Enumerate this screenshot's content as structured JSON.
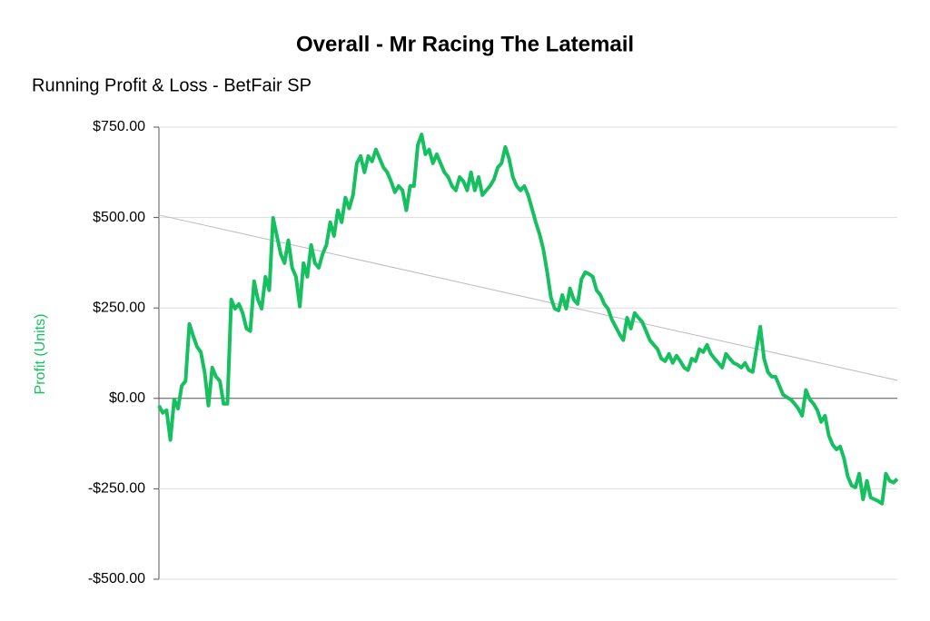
{
  "chart_data": {
    "type": "line",
    "title": "Overall - Mr Racing The Latemail",
    "subtitle": "Running Profit & Loss - BetFair SP",
    "y_label": "Profit (Units)",
    "ylim": [
      -500,
      750
    ],
    "yticks": [
      {
        "value": -500,
        "label": "-$500.00"
      },
      {
        "value": -250,
        "label": "-$250.00"
      },
      {
        "value": 0,
        "label": "$0.00"
      },
      {
        "value": 250,
        "label": "$250.00"
      },
      {
        "value": 500,
        "label": "$500.00"
      },
      {
        "value": 750,
        "label": "$750.00"
      }
    ],
    "grid": true,
    "color": "#16c060",
    "trendline": {
      "values": [
        507,
        50
      ],
      "color": "#bbbbbb"
    },
    "values": [
      -20,
      -40,
      -33,
      -115,
      -3,
      -28,
      35,
      48,
      206,
      173,
      143,
      128,
      73,
      -20,
      85,
      60,
      48,
      -15,
      -15,
      273,
      248,
      261,
      236,
      193,
      186,
      324,
      273,
      248,
      336,
      299,
      499,
      449,
      399,
      374,
      437,
      361,
      336,
      254,
      374,
      336,
      424,
      374,
      361,
      399,
      424,
      487,
      449,
      520,
      487,
      555,
      525,
      562,
      650,
      670,
      625,
      670,
      655,
      688,
      663,
      638,
      625,
      600,
      570,
      587,
      575,
      520,
      587,
      587,
      700,
      730,
      675,
      688,
      650,
      675,
      650,
      625,
      612,
      587,
      575,
      612,
      600,
      575,
      625,
      575,
      612,
      562,
      575,
      587,
      605,
      638,
      650,
      695,
      663,
      612,
      587,
      575,
      587,
      562,
      525,
      487,
      454,
      412,
      349,
      279,
      248,
      243,
      286,
      248,
      304,
      273,
      261,
      329,
      349,
      344,
      336,
      299,
      286,
      261,
      248,
      218,
      198,
      178,
      161,
      223,
      193,
      236,
      223,
      211,
      186,
      161,
      148,
      136,
      110,
      103,
      123,
      98,
      118,
      103,
      85,
      78,
      110,
      103,
      136,
      128,
      148,
      123,
      110,
      98,
      85,
      123,
      110,
      98,
      93,
      85,
      98,
      78,
      73,
      136,
      198,
      110,
      73,
      60,
      60,
      35,
      10,
      3,
      -3,
      -15,
      -28,
      -48,
      23,
      -3,
      -15,
      -33,
      -65,
      -48,
      -103,
      -128,
      -141,
      -133,
      -166,
      -216,
      -241,
      -246,
      -208,
      -279,
      -228,
      -274,
      -279,
      -284,
      -291,
      -208,
      -228,
      -233,
      -223
    ]
  }
}
